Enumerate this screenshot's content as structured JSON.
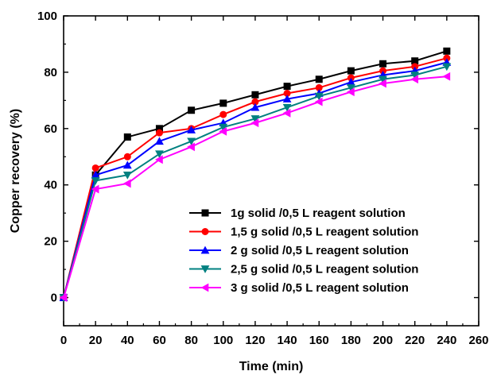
{
  "chart_data": {
    "type": "line",
    "title": "",
    "xlabel": "Time (min)",
    "ylabel": "Copper recovery (%)",
    "xlim": [
      0,
      260
    ],
    "ylim": [
      -10,
      100
    ],
    "xticks": [
      0,
      20,
      40,
      60,
      80,
      100,
      120,
      140,
      160,
      180,
      200,
      220,
      240,
      260
    ],
    "yticks": [
      0,
      20,
      40,
      60,
      80,
      100
    ],
    "grid": false,
    "legend_position": "bottom-right",
    "x": [
      0,
      20,
      40,
      60,
      80,
      100,
      120,
      140,
      160,
      180,
      200,
      220,
      240
    ],
    "series": [
      {
        "name": "1g solid /0,5 L reagent solution",
        "color": "#000000",
        "marker": "square",
        "values": [
          0,
          43.5,
          57,
          60,
          66.5,
          69,
          72,
          75,
          77.5,
          80.5,
          83,
          84,
          87.5
        ]
      },
      {
        "name": "1,5 g solid /0,5 L reagent solution",
        "color": "#ff0000",
        "marker": "circle",
        "values": [
          0,
          46,
          50,
          58.5,
          60,
          65,
          69.5,
          72.5,
          74.5,
          78,
          80.5,
          82,
          85
        ]
      },
      {
        "name": "2 g solid /0,5 L reagent solution",
        "color": "#0000ff",
        "marker": "triangle-up",
        "values": [
          0,
          43.5,
          47,
          55.5,
          59.5,
          62,
          67.5,
          70.5,
          72.5,
          76.5,
          79,
          80.5,
          83.5
        ]
      },
      {
        "name": "2,5 g solid /0,5 L reagent solution",
        "color": "#008080",
        "marker": "triangle-down",
        "values": [
          0,
          41.5,
          43.5,
          51,
          55.5,
          60.5,
          63.5,
          67.5,
          71.5,
          74.5,
          77.5,
          79,
          82
        ]
      },
      {
        "name": "3 g solid /0,5 L reagent solution",
        "color": "#ff00ff",
        "marker": "triangle-left",
        "values": [
          0,
          38.5,
          40.5,
          49,
          53.5,
          59,
          62,
          65.5,
          69.5,
          73,
          76,
          77.5,
          78.5
        ]
      }
    ]
  }
}
